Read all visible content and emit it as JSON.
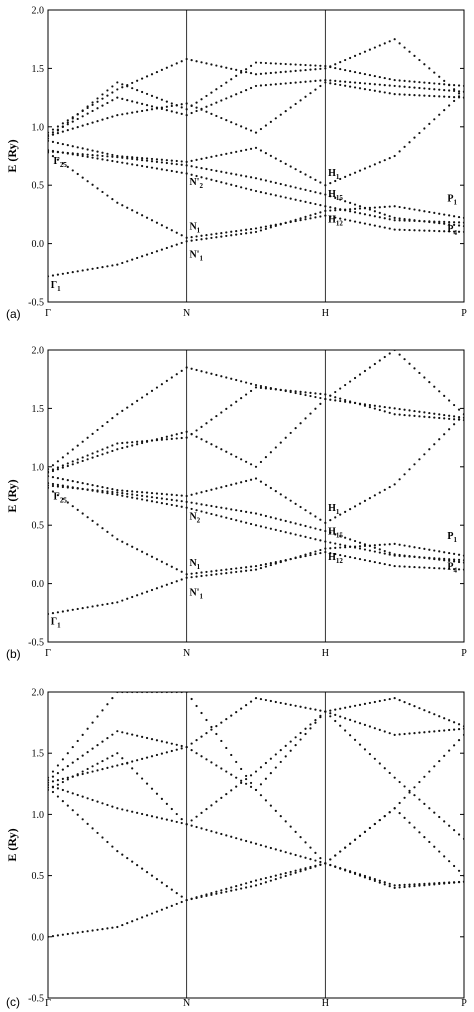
{
  "chart_data": [
    {
      "type": "scatter",
      "panel_label": "(a)",
      "ylabel": "E (Ry)",
      "ylim": [
        -0.5,
        2.0
      ],
      "yticks": [
        "-0.5",
        "0.0",
        "0.5",
        "1.0",
        "1.5",
        "2.0"
      ],
      "xticks": [
        "Γ",
        "N",
        "H",
        "P"
      ],
      "xtick_positions": [
        0,
        1,
        2,
        3
      ],
      "grid": "vertical lines at N and H",
      "series": [
        {
          "x": [
            0,
            0.5,
            1,
            1.5,
            2,
            2.5,
            3
          ],
          "y": [
            -0.28,
            -0.18,
            0.02,
            0.1,
            0.28,
            0.32,
            0.22
          ]
        },
        {
          "x": [
            0,
            0.5,
            1,
            1.5,
            2,
            2.5,
            3
          ],
          "y": [
            0.78,
            0.35,
            0.05,
            0.13,
            0.24,
            0.12,
            0.1
          ]
        },
        {
          "x": [
            0,
            0.5,
            1,
            1.5,
            2,
            2.5,
            3
          ],
          "y": [
            0.79,
            0.74,
            0.67,
            0.56,
            0.42,
            0.22,
            0.15
          ]
        },
        {
          "x": [
            0,
            0.5,
            1,
            1.5,
            2,
            2.5,
            3
          ],
          "y": [
            0.8,
            0.7,
            0.6,
            0.45,
            0.32,
            0.2,
            0.18
          ]
        },
        {
          "x": [
            0,
            0.5,
            1,
            1.5,
            2,
            2.5,
            3
          ],
          "y": [
            0.88,
            0.75,
            0.7,
            0.82,
            0.5,
            0.75,
            1.3
          ]
        },
        {
          "x": [
            0,
            0.5,
            1,
            1.5,
            2,
            2.5,
            3
          ],
          "y": [
            0.92,
            1.1,
            1.2,
            0.95,
            1.38,
            1.28,
            1.25
          ]
        },
        {
          "x": [
            0,
            0.5,
            1,
            1.5,
            2,
            2.5,
            3
          ],
          "y": [
            0.95,
            1.32,
            1.58,
            1.45,
            1.5,
            1.75,
            1.25
          ]
        },
        {
          "x": [
            0,
            0.5,
            1,
            1.5,
            2,
            2.5,
            3
          ],
          "y": [
            0.9,
            1.38,
            1.15,
            1.55,
            1.52,
            1.4,
            1.35
          ]
        },
        {
          "x": [
            0,
            0.5,
            1,
            1.5,
            2,
            2.5,
            3
          ],
          "y": [
            0.93,
            1.25,
            1.1,
            1.35,
            1.4,
            1.35,
            1.3
          ]
        }
      ],
      "annotations": [
        {
          "text": "Γ",
          "sub": "1",
          "x": 0.02,
          "y": -0.38
        },
        {
          "text": "Γ",
          "sub": "25",
          "x": 0.04,
          "y": 0.68
        },
        {
          "text": "N",
          "sub": "1",
          "x": 1.02,
          "y": 0.12
        },
        {
          "text": "N'",
          "sub": "1",
          "x": 1.02,
          "y": -0.12
        },
        {
          "text": "N'",
          "sub": "2",
          "x": 1.02,
          "y": 0.5
        },
        {
          "text": "H",
          "sub": "1",
          "x": 2.02,
          "y": 0.58
        },
        {
          "text": "H",
          "sub": "15",
          "x": 2.02,
          "y": 0.4
        },
        {
          "text": "H",
          "sub": "12",
          "x": 2.02,
          "y": 0.18
        },
        {
          "text": "P",
          "sub": "1",
          "x": 2.88,
          "y": 0.36
        },
        {
          "text": "P",
          "sub": "4",
          "x": 2.88,
          "y": 0.1
        }
      ]
    },
    {
      "type": "scatter",
      "panel_label": "(b)",
      "ylabel": "E (Ry)",
      "ylim": [
        -0.5,
        2.0
      ],
      "yticks": [
        "-0.5",
        "0.0",
        "0.5",
        "1.0",
        "1.5",
        "2.0"
      ],
      "xticks": [
        "Γ",
        "N",
        "H",
        "P"
      ],
      "xtick_positions": [
        0,
        1,
        2,
        3
      ],
      "grid": "vertical lines at N and H",
      "series": [
        {
          "x": [
            0,
            0.5,
            1,
            1.5,
            2,
            2.5,
            3
          ],
          "y": [
            -0.26,
            -0.16,
            0.05,
            0.12,
            0.3,
            0.34,
            0.24
          ]
        },
        {
          "x": [
            0,
            0.5,
            1,
            1.5,
            2,
            2.5,
            3
          ],
          "y": [
            0.82,
            0.38,
            0.08,
            0.15,
            0.27,
            0.15,
            0.12
          ]
        },
        {
          "x": [
            0,
            0.5,
            1,
            1.5,
            2,
            2.5,
            3
          ],
          "y": [
            0.84,
            0.78,
            0.7,
            0.6,
            0.45,
            0.25,
            0.18
          ]
        },
        {
          "x": [
            0,
            0.5,
            1,
            1.5,
            2,
            2.5,
            3
          ],
          "y": [
            0.86,
            0.76,
            0.65,
            0.5,
            0.36,
            0.24,
            0.2
          ]
        },
        {
          "x": [
            0,
            0.5,
            1,
            1.5,
            2,
            2.5,
            3
          ],
          "y": [
            0.92,
            0.8,
            0.75,
            0.9,
            0.52,
            0.85,
            1.45
          ]
        },
        {
          "x": [
            0,
            0.5,
            1,
            1.5,
            2,
            2.5,
            3
          ],
          "y": [
            0.95,
            1.15,
            1.3,
            1.0,
            1.58,
            1.5,
            1.42
          ]
        },
        {
          "x": [
            0,
            0.5,
            1,
            1.5,
            2,
            2.5,
            3
          ],
          "y": [
            0.98,
            1.45,
            1.85,
            1.7,
            1.58,
            2.0,
            1.45
          ]
        },
        {
          "x": [
            0,
            0.5,
            1,
            1.5,
            2,
            2.5,
            3
          ],
          "y": [
            0.96,
            1.2,
            1.25,
            1.68,
            1.62,
            1.45,
            1.4
          ]
        }
      ],
      "annotations": [
        {
          "text": "Γ",
          "sub": "1",
          "x": 0.02,
          "y": -0.35
        },
        {
          "text": "Γ",
          "sub": "25",
          "x": 0.04,
          "y": 0.72
        },
        {
          "text": "N",
          "sub": "1",
          "x": 1.02,
          "y": 0.15
        },
        {
          "text": "N'",
          "sub": "1",
          "x": 1.02,
          "y": -0.1
        },
        {
          "text": "N",
          "sub": "2",
          "x": 1.02,
          "y": 0.55
        },
        {
          "text": "H",
          "sub": "1",
          "x": 2.02,
          "y": 0.62
        },
        {
          "text": "H",
          "sub": "15",
          "x": 2.02,
          "y": 0.42
        },
        {
          "text": "H",
          "sub": "12",
          "x": 2.02,
          "y": 0.2
        },
        {
          "text": "P",
          "sub": "1",
          "x": 2.88,
          "y": 0.38
        },
        {
          "text": "P",
          "sub": "4",
          "x": 2.88,
          "y": 0.12
        }
      ]
    },
    {
      "type": "scatter",
      "panel_label": "(c)",
      "ylabel": "E (Ry)",
      "ylim": [
        -0.5,
        2.0
      ],
      "yticks": [
        "-0.5",
        "0.0",
        "0.5",
        "1.0",
        "1.5",
        "2.0"
      ],
      "xticks": [
        "Γ",
        "N",
        "H",
        "P"
      ],
      "xtick_positions": [
        0,
        1,
        2,
        3
      ],
      "grid": "vertical lines at N and H",
      "series": [
        {
          "x": [
            0,
            0.5,
            1,
            1.5,
            2,
            2.5,
            3
          ],
          "y": [
            0.0,
            0.08,
            0.3,
            0.42,
            0.6,
            0.42,
            0.45
          ]
        },
        {
          "x": [
            0,
            0.5,
            1,
            1.5,
            2,
            2.5,
            3
          ],
          "y": [
            1.22,
            0.7,
            0.3,
            0.46,
            0.6,
            1.05,
            0.5
          ]
        },
        {
          "x": [
            0,
            0.5,
            1,
            1.5,
            2,
            2.5,
            3
          ],
          "y": [
            1.24,
            1.05,
            0.92,
            0.76,
            0.6,
            1.05,
            1.65
          ]
        },
        {
          "x": [
            0,
            0.5,
            1,
            1.5,
            2,
            2.5,
            3
          ],
          "y": [
            1.26,
            1.4,
            1.55,
            1.2,
            0.6,
            0.4,
            0.45
          ]
        },
        {
          "x": [
            0,
            0.5,
            1,
            1.5,
            2,
            2.5,
            3
          ],
          "y": [
            1.28,
            1.68,
            1.55,
            1.95,
            1.84,
            1.65,
            1.7
          ]
        },
        {
          "x": [
            0,
            0.5,
            1,
            1.5,
            2,
            2.5,
            3
          ],
          "y": [
            1.3,
            2.0,
            2.0,
            1.2,
            1.84,
            1.95,
            1.72
          ]
        },
        {
          "x": [
            0,
            0.5,
            1,
            1.5,
            2,
            2.5,
            3
          ],
          "y": [
            1.2,
            1.5,
            0.92,
            1.35,
            1.84,
            1.3,
            0.8
          ]
        }
      ],
      "annotations": []
    }
  ]
}
